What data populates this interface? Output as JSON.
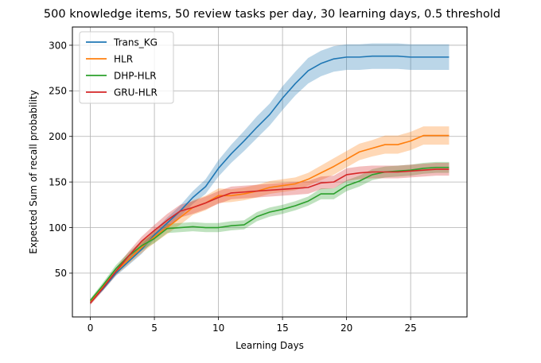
{
  "chart_data": {
    "type": "line",
    "title": "500 knowledge items, 50 review tasks per day, 30 learning days, 0.5 threshold",
    "xlabel": "Learning Days",
    "ylabel": "Expected Sum of recall probability",
    "xlim": [
      -1.4,
      29.4
    ],
    "ylim": [
      2,
      320
    ],
    "xticks": [
      0,
      5,
      10,
      15,
      20,
      25
    ],
    "yticks": [
      50,
      100,
      150,
      200,
      250,
      300
    ],
    "grid": true,
    "legend_position": "top-left",
    "x": [
      0,
      1,
      2,
      3,
      4,
      5,
      6,
      7,
      8,
      9,
      10,
      11,
      12,
      13,
      14,
      15,
      16,
      17,
      18,
      19,
      20,
      21,
      22,
      23,
      24,
      25,
      26,
      27,
      28
    ],
    "series": [
      {
        "name": "Trans_KG",
        "color": "#1f77b4",
        "values": [
          18,
          33,
          50,
          63,
          76,
          92,
          105,
          118,
          133,
          145,
          165,
          181,
          195,
          210,
          224,
          242,
          258,
          272,
          280,
          285,
          287,
          287,
          288,
          288,
          288,
          287,
          287,
          287,
          287
        ],
        "lower": [
          16,
          31,
          47,
          59,
          71,
          87,
          99,
          112,
          126,
          137,
          156,
          171,
          184,
          198,
          212,
          229,
          245,
          258,
          266,
          271,
          273,
          273,
          274,
          274,
          274,
          273,
          273,
          273,
          273
        ],
        "upper": [
          20,
          35,
          53,
          67,
          81,
          97,
          111,
          124,
          140,
          153,
          174,
          191,
          206,
          222,
          236,
          255,
          271,
          286,
          294,
          299,
          301,
          301,
          302,
          302,
          302,
          301,
          301,
          301,
          301
        ]
      },
      {
        "name": "HLR",
        "color": "#ff7f0e",
        "values": [
          19,
          35,
          52,
          65,
          78,
          90,
          100,
          111,
          122,
          127,
          135,
          135,
          137,
          140,
          144,
          146,
          148,
          153,
          160,
          167,
          175,
          183,
          187,
          191,
          191,
          195,
          201,
          201,
          201
        ],
        "lower": [
          17,
          32,
          48,
          60,
          72,
          83,
          93,
          103,
          114,
          119,
          127,
          128,
          130,
          133,
          137,
          139,
          141,
          146,
          152,
          158,
          166,
          174,
          178,
          181,
          181,
          185,
          191,
          191,
          191
        ],
        "upper": [
          21,
          38,
          56,
          70,
          84,
          97,
          107,
          119,
          130,
          135,
          143,
          142,
          144,
          147,
          151,
          153,
          155,
          160,
          168,
          176,
          184,
          192,
          196,
          201,
          201,
          205,
          211,
          211,
          211
        ]
      },
      {
        "name": "DHP-HLR",
        "color": "#2ca02c",
        "values": [
          20,
          37,
          55,
          69,
          80,
          88,
          99,
          100,
          101,
          100,
          100,
          102,
          103,
          112,
          117,
          120,
          124,
          129,
          137,
          137,
          146,
          151,
          158,
          161,
          162,
          163,
          165,
          166,
          166
        ],
        "lower": [
          18,
          34,
          51,
          65,
          75,
          83,
          94,
          95,
          96,
          95,
          95,
          97,
          98,
          107,
          112,
          115,
          119,
          124,
          131,
          131,
          140,
          145,
          152,
          155,
          156,
          157,
          159,
          160,
          160
        ],
        "upper": [
          22,
          40,
          59,
          73,
          85,
          93,
          104,
          105,
          106,
          105,
          105,
          107,
          108,
          117,
          122,
          125,
          129,
          134,
          143,
          143,
          152,
          157,
          164,
          167,
          168,
          169,
          171,
          172,
          172
        ]
      },
      {
        "name": "GRU-HLR",
        "color": "#d62728",
        "values": [
          17,
          34,
          52,
          69,
          85,
          97,
          108,
          118,
          122,
          127,
          133,
          138,
          139,
          140,
          141,
          142,
          143,
          144,
          149,
          150,
          158,
          160,
          161,
          161,
          161,
          162,
          163,
          164,
          164
        ],
        "lower": [
          15,
          31,
          48,
          64,
          80,
          91,
          101,
          111,
          115,
          120,
          126,
          131,
          132,
          133,
          134,
          135,
          136,
          137,
          142,
          143,
          151,
          153,
          154,
          154,
          154,
          155,
          156,
          157,
          157
        ],
        "upper": [
          19,
          37,
          56,
          74,
          90,
          103,
          115,
          125,
          129,
          134,
          140,
          145,
          146,
          147,
          148,
          149,
          150,
          151,
          156,
          157,
          165,
          167,
          168,
          168,
          168,
          169,
          170,
          171,
          171
        ]
      }
    ]
  }
}
